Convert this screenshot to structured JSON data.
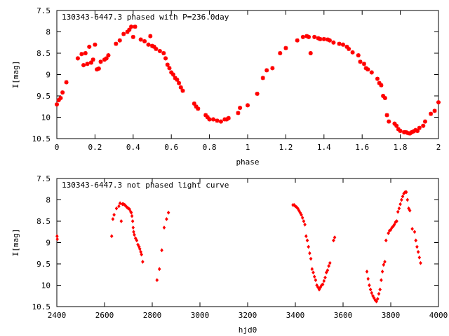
{
  "colors": {
    "points": "#ff0000",
    "axes": "#000000",
    "background": "#ffffff"
  },
  "chart_data": [
    {
      "type": "scatter",
      "title": "130343-6447.3 phased with P=236.0day",
      "xlabel": "phase",
      "ylabel": "I[mag]",
      "xlim": [
        0,
        2
      ],
      "ylim": [
        10.5,
        7.5
      ],
      "y_inverted": true,
      "grid": false,
      "xticks": [
        0,
        0.2,
        0.4,
        0.6,
        0.8,
        1,
        1.2,
        1.4,
        1.6,
        1.8,
        2
      ],
      "xtick_labels": [
        "0",
        "0.2",
        "0.4",
        "0.6",
        "0.8",
        "1",
        "1.2",
        "1.4",
        "1.6",
        "1.8",
        "2"
      ],
      "yticks": [
        7.5,
        8,
        8.5,
        9,
        9.5,
        10,
        10.5
      ],
      "ytick_labels": [
        "7.5",
        "8",
        "8.5",
        "9",
        "9.5",
        "10",
        "10.5"
      ],
      "x": [
        0.0,
        0.01,
        0.02,
        0.03,
        0.05,
        0.11,
        0.13,
        0.14,
        0.15,
        0.16,
        0.17,
        0.18,
        0.18,
        0.19,
        0.2,
        0.21,
        0.22,
        0.23,
        0.25,
        0.26,
        0.27,
        0.31,
        0.33,
        0.35,
        0.37,
        0.38,
        0.39,
        0.4,
        0.41,
        0.44,
        0.46,
        0.48,
        0.49,
        0.5,
        0.51,
        0.52,
        0.54,
        0.56,
        0.57,
        0.58,
        0.59,
        0.6,
        0.61,
        0.62,
        0.63,
        0.64,
        0.65,
        0.66,
        0.72,
        0.73,
        0.74,
        0.78,
        0.79,
        0.8,
        0.82,
        0.84,
        0.86,
        0.88,
        0.89,
        0.9,
        0.95,
        0.96,
        1.0,
        1.05,
        1.08,
        1.1,
        1.13,
        1.17,
        1.2,
        1.26,
        1.29,
        1.31,
        1.32,
        1.33,
        1.35,
        1.37,
        1.38,
        1.4,
        1.42,
        1.43,
        1.45,
        1.48,
        1.5,
        1.52,
        1.53,
        1.55,
        1.58,
        1.59,
        1.61,
        1.62,
        1.63,
        1.65,
        1.68,
        1.69,
        1.7,
        1.71,
        1.72,
        1.73,
        1.74,
        1.77,
        1.78,
        1.79,
        1.8,
        1.82,
        1.83,
        1.84,
        1.85,
        1.86,
        1.87,
        1.88,
        1.89,
        1.9,
        1.92,
        1.93,
        1.96,
        1.98,
        2.0
      ],
      "y": [
        9.7,
        9.6,
        9.55,
        9.42,
        9.18,
        8.62,
        8.52,
        8.78,
        8.5,
        8.75,
        8.35,
        8.72,
        8.72,
        8.65,
        8.3,
        8.88,
        8.86,
        8.7,
        8.65,
        8.62,
        8.55,
        8.28,
        8.2,
        8.05,
        8.0,
        7.95,
        7.88,
        8.12,
        7.88,
        8.18,
        8.22,
        8.3,
        8.1,
        8.33,
        8.35,
        8.4,
        8.45,
        8.5,
        8.62,
        8.77,
        8.85,
        8.95,
        9.0,
        9.08,
        9.12,
        9.2,
        9.3,
        9.38,
        9.68,
        9.75,
        9.8,
        9.95,
        10.0,
        10.05,
        10.05,
        10.08,
        10.1,
        10.05,
        10.05,
        10.02,
        9.9,
        9.78,
        9.72,
        9.45,
        9.08,
        8.9,
        8.85,
        8.5,
        8.38,
        8.2,
        8.12,
        8.1,
        8.12,
        8.5,
        8.12,
        8.15,
        8.17,
        8.17,
        8.18,
        8.2,
        8.25,
        8.28,
        8.3,
        8.35,
        8.4,
        8.48,
        8.55,
        8.7,
        8.75,
        8.85,
        8.88,
        8.95,
        9.1,
        9.2,
        9.25,
        9.5,
        9.55,
        9.95,
        10.1,
        10.15,
        10.2,
        10.28,
        10.32,
        10.35,
        10.35,
        10.37,
        10.38,
        10.35,
        10.33,
        10.3,
        10.32,
        10.25,
        10.2,
        10.1,
        9.92,
        9.85,
        9.65
      ]
    },
    {
      "type": "scatter",
      "title": "130343-6447.3 not phased light curve",
      "xlabel": "hjd0",
      "ylabel": "I[mag]",
      "xlim": [
        2400,
        4000
      ],
      "ylim": [
        10.5,
        7.5
      ],
      "y_inverted": true,
      "grid": false,
      "xticks": [
        2400,
        2600,
        2800,
        3000,
        3200,
        3400,
        3600,
        3800,
        4000
      ],
      "xtick_labels": [
        "2400",
        "2600",
        "2800",
        "3000",
        "3200",
        "3400",
        "3600",
        "3800",
        "4000"
      ],
      "yticks": [
        7.5,
        8,
        8.5,
        9,
        9.5,
        10,
        10.5
      ],
      "ytick_labels": [
        "7.5",
        "8",
        "8.5",
        "9",
        "9.5",
        "10",
        "10.5"
      ],
      "x": [
        2401,
        2402,
        2630,
        2635,
        2640,
        2650,
        2660,
        2665,
        2670,
        2675,
        2680,
        2685,
        2690,
        2695,
        2700,
        2705,
        2710,
        2712,
        2715,
        2718,
        2720,
        2722,
        2725,
        2730,
        2735,
        2740,
        2745,
        2748,
        2752,
        2755,
        2760,
        2820,
        2830,
        2840,
        2850,
        2860,
        2868,
        3390,
        3395,
        3400,
        3405,
        3410,
        3415,
        3420,
        3425,
        3430,
        3435,
        3440,
        3445,
        3450,
        3455,
        3460,
        3465,
        3470,
        3475,
        3480,
        3485,
        3490,
        3495,
        3500,
        3505,
        3510,
        3515,
        3520,
        3525,
        3530,
        3535,
        3540,
        3545,
        3560,
        3565,
        3700,
        3705,
        3710,
        3715,
        3720,
        3725,
        3730,
        3735,
        3740,
        3745,
        3750,
        3755,
        3760,
        3765,
        3770,
        3775,
        3780,
        3790,
        3795,
        3800,
        3805,
        3810,
        3815,
        3820,
        3825,
        3830,
        3835,
        3840,
        3845,
        3850,
        3855,
        3860,
        3865,
        3870,
        3875,
        3880,
        3890,
        3900,
        3905,
        3910,
        3915,
        3920,
        3925
      ],
      "y": [
        8.85,
        8.92,
        8.85,
        8.45,
        8.35,
        8.2,
        8.15,
        8.08,
        8.5,
        8.1,
        8.1,
        8.12,
        8.15,
        8.18,
        8.2,
        8.22,
        8.28,
        8.3,
        8.38,
        8.5,
        8.65,
        8.75,
        8.82,
        8.9,
        8.95,
        9.05,
        9.1,
        9.15,
        9.22,
        9.28,
        9.45,
        9.88,
        9.62,
        9.18,
        8.65,
        8.45,
        8.3,
        8.12,
        8.12,
        8.15,
        8.17,
        8.2,
        8.25,
        8.3,
        8.35,
        8.42,
        8.5,
        8.58,
        8.85,
        8.95,
        9.1,
        9.25,
        9.38,
        9.62,
        9.7,
        9.8,
        9.88,
        10.0,
        10.05,
        10.1,
        10.05,
        10.0,
        9.98,
        9.9,
        9.82,
        9.7,
        9.65,
        9.55,
        9.48,
        8.95,
        8.88,
        9.68,
        9.85,
        10.0,
        10.1,
        10.18,
        10.25,
        10.3,
        10.35,
        10.38,
        10.32,
        10.2,
        10.1,
        9.88,
        9.68,
        9.52,
        9.45,
        8.95,
        8.78,
        8.72,
        8.7,
        8.65,
        8.62,
        8.58,
        8.52,
        8.5,
        8.28,
        8.2,
        8.1,
        8.0,
        7.92,
        7.85,
        7.82,
        7.82,
        8.0,
        8.2,
        8.25,
        8.68,
        8.75,
        8.95,
        9.1,
        9.22,
        9.35,
        9.48
      ]
    }
  ]
}
